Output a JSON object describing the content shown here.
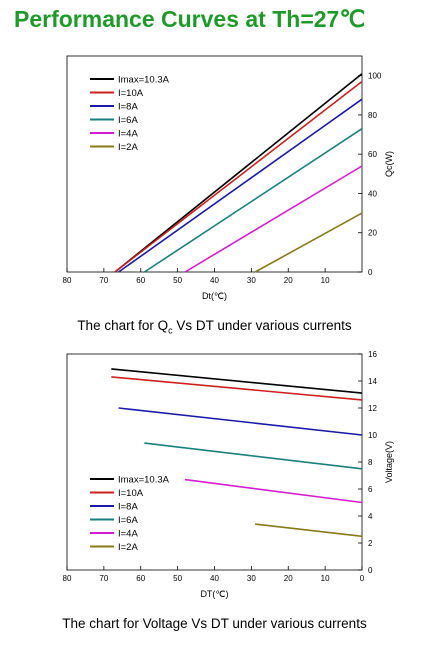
{
  "page": {
    "title": "Performance Curves at Th=27℃",
    "caption1_pre": "The chart for Q",
    "caption1_sub": "c",
    "caption1_post": " Vs DT under various currents",
    "caption2": "The chart for Voltage Vs DT under various currents"
  },
  "chart_data": [
    {
      "type": "line",
      "xlabel": "Dt(℃)",
      "ylabel": "Qc(W)",
      "xlim": [
        80,
        0
      ],
      "ylim": [
        0,
        110
      ],
      "x_ticks": [
        80,
        70,
        60,
        50,
        40,
        30,
        20,
        10
      ],
      "y_ticks": [
        0,
        20,
        40,
        60,
        80,
        100
      ],
      "y_axis_side": "right",
      "legend": "top-left",
      "series": [
        {
          "name": "Imax=10.3A",
          "color": "#000000",
          "x": [
            67,
            0
          ],
          "y": [
            0,
            101
          ]
        },
        {
          "name": "I=10A",
          "color": "#cc1f1f",
          "x": [
            67,
            0
          ],
          "y": [
            0,
            97
          ]
        },
        {
          "name": "I=8A",
          "color": "#1a1aa8",
          "x": [
            66,
            0
          ],
          "y": [
            0,
            88
          ]
        },
        {
          "name": "I=6A",
          "color": "#1a7f7f",
          "x": [
            59,
            0
          ],
          "y": [
            0,
            73
          ]
        },
        {
          "name": "I=4A",
          "color": "#d21ed2",
          "x": [
            48,
            0
          ],
          "y": [
            0,
            54
          ]
        },
        {
          "name": "I=2A",
          "color": "#8a7a1a",
          "x": [
            29,
            0
          ],
          "y": [
            0,
            30
          ]
        }
      ]
    },
    {
      "type": "line",
      "xlabel": "DT(℃)",
      "ylabel": "Voltage(V)",
      "xlim": [
        80,
        0
      ],
      "ylim": [
        0,
        16
      ],
      "x_ticks": [
        80,
        70,
        60,
        50,
        40,
        30,
        20,
        10,
        0
      ],
      "y_ticks": [
        0,
        2,
        4,
        6,
        8,
        10,
        12,
        14,
        16
      ],
      "y_axis_side": "right",
      "legend": "bottom-left",
      "series": [
        {
          "name": "Imax=10.3A",
          "color": "#000000",
          "x": [
            68,
            0
          ],
          "y": [
            14.9,
            13.1
          ]
        },
        {
          "name": "I=10A",
          "color": "#cc1f1f",
          "x": [
            68,
            0
          ],
          "y": [
            14.3,
            12.6
          ]
        },
        {
          "name": "I=8A",
          "color": "#1a1aa8",
          "x": [
            66,
            0
          ],
          "y": [
            12.0,
            10.0
          ]
        },
        {
          "name": "I=6A",
          "color": "#1a7f7f",
          "x": [
            59,
            0
          ],
          "y": [
            9.4,
            7.5
          ]
        },
        {
          "name": "I=4A",
          "color": "#d21ed2",
          "x": [
            48,
            0
          ],
          "y": [
            6.7,
            5.0
          ]
        },
        {
          "name": "I=2A",
          "color": "#8a7a1a",
          "x": [
            29,
            0
          ],
          "y": [
            3.4,
            2.5
          ]
        }
      ]
    }
  ]
}
